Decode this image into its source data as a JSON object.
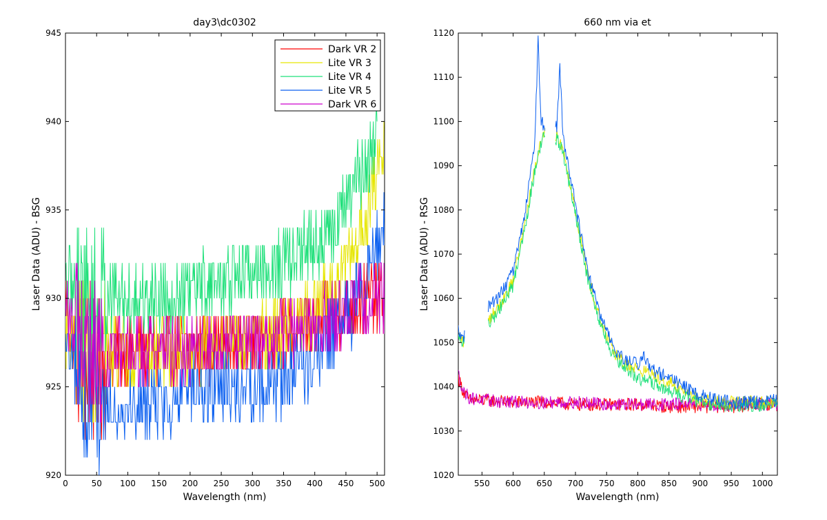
{
  "figure": {
    "background": "#ffffff"
  },
  "chart_data": [
    {
      "type": "line",
      "title": "day3\\dc0302",
      "xlabel": "Wavelength (nm)",
      "ylabel": "Laser Data (ADU) - BSG",
      "xlim": [
        0,
        512
      ],
      "ylim": [
        920,
        945
      ],
      "x_ticks": [
        "0",
        "50",
        "100",
        "150",
        "200",
        "250",
        "300",
        "350",
        "400",
        "450",
        "500"
      ],
      "y_ticks": [
        "920",
        "925",
        "930",
        "935",
        "940",
        "945"
      ],
      "grid": false,
      "legend_position": "top-right",
      "series": [
        {
          "name": "Dark VR 2",
          "color": "#ff0000",
          "x": [
            0,
            10,
            20,
            30,
            40,
            50,
            60,
            80,
            100,
            150,
            200,
            250,
            300,
            350,
            400,
            420,
            450,
            480,
            500,
            512
          ],
          "y": [
            930,
            928,
            927,
            926,
            926,
            926,
            926,
            927,
            927,
            927,
            927,
            927.5,
            927.5,
            928,
            928.5,
            929,
            929.5,
            930,
            930,
            930.5
          ],
          "noise": 2.0
        },
        {
          "name": "Lite VR 3",
          "color": "#e6e600",
          "x": [
            0,
            20,
            40,
            60,
            100,
            150,
            200,
            250,
            300,
            350,
            380,
            400,
            420,
            440,
            460,
            480,
            500,
            512
          ],
          "y": [
            928,
            927,
            927,
            927,
            927,
            927,
            927,
            927.5,
            927.5,
            928,
            928.5,
            929,
            930,
            931,
            932.5,
            934.5,
            937,
            939
          ],
          "noise": 2.0
        },
        {
          "name": "Lite VR 4",
          "color": "#1fe07a",
          "x": [
            0,
            20,
            50,
            80,
            100,
            150,
            200,
            250,
            300,
            350,
            400,
            420,
            440,
            460,
            480,
            500
          ],
          "y": [
            931,
            930,
            930,
            930,
            930,
            930,
            930.5,
            931,
            931.5,
            932,
            933,
            933.5,
            934.5,
            936,
            937.5,
            939
          ],
          "noise": 2.0
        },
        {
          "name": "Lite VR 5",
          "color": "#0a5ff0",
          "x": [
            0,
            20,
            50,
            80,
            100,
            150,
            200,
            250,
            300,
            350,
            380,
            400,
            420,
            440,
            460,
            480,
            500,
            512
          ],
          "y": [
            927,
            925,
            924.5,
            924,
            924,
            924,
            924.5,
            925,
            925,
            925.5,
            926,
            926.5,
            927.5,
            928.5,
            929.5,
            931,
            933,
            935
          ],
          "noise": 2.0
        },
        {
          "name": "Dark VR 6",
          "color": "#cc00cc",
          "x": [
            0,
            20,
            30,
            40,
            50,
            60,
            80,
            100,
            150,
            200,
            250,
            300,
            350,
            400,
            450,
            500,
            512
          ],
          "y": [
            929,
            928,
            927,
            926.5,
            926,
            926.5,
            927,
            927,
            927,
            927,
            927.5,
            927.5,
            928,
            928.5,
            929.5,
            930,
            930
          ],
          "noise": 2.0
        }
      ]
    },
    {
      "type": "line",
      "title": "660 nm via et",
      "xlabel": "Wavelength (nm)",
      "ylabel": "Laser Data (ADU) - RSG",
      "xlim": [
        512,
        1024
      ],
      "ylim": [
        1020,
        1120
      ],
      "x_ticks": [
        "550",
        "600",
        "650",
        "700",
        "750",
        "800",
        "850",
        "900",
        "950",
        "1000"
      ],
      "y_ticks": [
        "1020",
        "1030",
        "1040",
        "1050",
        "1060",
        "1070",
        "1080",
        "1090",
        "1100",
        "1110",
        "1120"
      ],
      "grid": false,
      "series": [
        {
          "color": "#ff0000",
          "x": [
            512,
            520,
            530,
            550,
            600,
            650,
            700,
            750,
            800,
            850,
            900,
            950,
            1000,
            1024
          ],
          "y": [
            1042,
            1039,
            1037,
            1037,
            1036.5,
            1036.5,
            1036,
            1036,
            1036,
            1035.5,
            1035.5,
            1035.5,
            1036,
            1036
          ],
          "noise": 1.5
        },
        {
          "color": "#cc00cc",
          "x": [
            512,
            520,
            530,
            550,
            600,
            650,
            700,
            750,
            800,
            850,
            900,
            950,
            1000,
            1024
          ],
          "y": [
            1043,
            1039,
            1037.5,
            1037,
            1036.5,
            1036.5,
            1036.5,
            1036,
            1036,
            1036,
            1036,
            1036,
            1036,
            1036
          ],
          "noise": 1.5
        },
        {
          "color": "#e6e600",
          "x": [
            512,
            520,
            560,
            580,
            600,
            620,
            640,
            650,
            660,
            670,
            680,
            700,
            720,
            740,
            760,
            780,
            800,
            820,
            850,
            900,
            950,
            1000,
            1024
          ],
          "y": [
            1052,
            1050,
            1055,
            1059,
            1064,
            1078,
            1093,
            1098,
            1097,
            1097,
            1094,
            1080,
            1065,
            1055,
            1048,
            1045,
            1044,
            1043,
            1041,
            1037,
            1036.5,
            1036.5,
            1036.5
          ],
          "noise": 1.5,
          "gaps": [
            [
              522,
              560
            ],
            [
              651,
              668
            ]
          ]
        },
        {
          "color": "#1fe07a",
          "x": [
            512,
            520,
            560,
            580,
            600,
            620,
            640,
            650,
            660,
            670,
            680,
            700,
            720,
            740,
            760,
            780,
            800,
            820,
            850,
            900,
            950,
            1000,
            1024
          ],
          "y": [
            1051,
            1050,
            1054,
            1058,
            1063,
            1077,
            1093,
            1097,
            1096,
            1096,
            1093,
            1079,
            1064,
            1054,
            1047,
            1044,
            1042,
            1041,
            1039,
            1036.5,
            1035.5,
            1036,
            1036
          ],
          "noise": 1.5,
          "gaps": [
            [
              522,
              560
            ],
            [
              651,
              668
            ]
          ]
        },
        {
          "color": "#0a5ff0",
          "x": [
            512,
            520,
            560,
            580,
            600,
            620,
            635,
            640,
            645,
            650,
            660,
            670,
            675,
            680,
            700,
            720,
            740,
            760,
            780,
            800,
            810,
            820,
            850,
            900,
            950,
            1000,
            1024
          ],
          "y": [
            1053,
            1051,
            1058,
            1061,
            1066,
            1080,
            1096,
            1118,
            1100,
            1099,
            1098,
            1099,
            1112,
            1097,
            1081,
            1066,
            1056,
            1049,
            1046,
            1045,
            1047,
            1044,
            1042,
            1038,
            1036.5,
            1036.5,
            1037
          ],
          "noise": 1.5,
          "gaps": [
            [
              522,
              560
            ],
            [
              651,
              668
            ]
          ]
        }
      ]
    }
  ]
}
